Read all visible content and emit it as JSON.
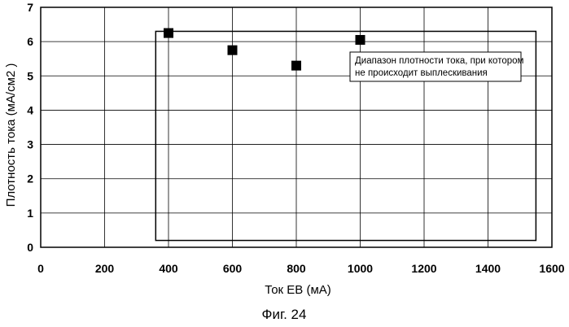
{
  "chart_data": {
    "type": "scatter",
    "xlabel": "Ток EB (мА)",
    "ylabel": "Плотность тока (мА/см2 )",
    "xlim": [
      0,
      1600
    ],
    "ylim": [
      0,
      7
    ],
    "x_ticks": [
      "0",
      "200",
      "400",
      "600",
      "800",
      "1000",
      "1200",
      "1400",
      "1600"
    ],
    "y_ticks": [
      "0",
      "1",
      "2",
      "3",
      "4",
      "5",
      "6",
      "7"
    ],
    "grid": true,
    "series": [
      {
        "points": [
          {
            "x": 400,
            "y": 6.25
          },
          {
            "x": 600,
            "y": 5.75
          },
          {
            "x": 800,
            "y": 5.3
          },
          {
            "x": 1000,
            "y": 6.05
          }
        ]
      }
    ],
    "region": {
      "x_range": [
        360,
        1550
      ],
      "y_range": [
        0.2,
        6.3
      ]
    },
    "annotation": {
      "lines": [
        "Диапазон плотности тока, при котором",
        "не происходит выплескивания"
      ]
    },
    "caption": "Фиг. 24"
  }
}
